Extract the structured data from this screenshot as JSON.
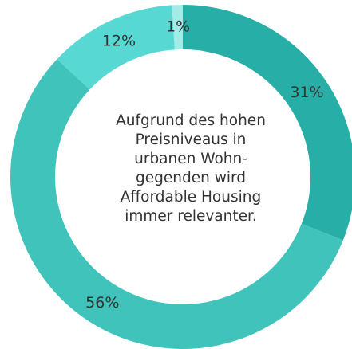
{
  "chart_data": {
    "type": "donut",
    "center_text": [
      "Aufgrund des hohen",
      "Preisniveaus in",
      "urbanen Wohn-",
      "gegenden wird",
      "Affordable Housing",
      "immer relevanter."
    ],
    "values": [
      31,
      56,
      12,
      1
    ],
    "value_labels": [
      "31%",
      "56%",
      "12%",
      "1%"
    ],
    "colors": [
      "#27aea6",
      "#3fc3ba",
      "#58d8d2",
      "#a3ebe7"
    ]
  }
}
